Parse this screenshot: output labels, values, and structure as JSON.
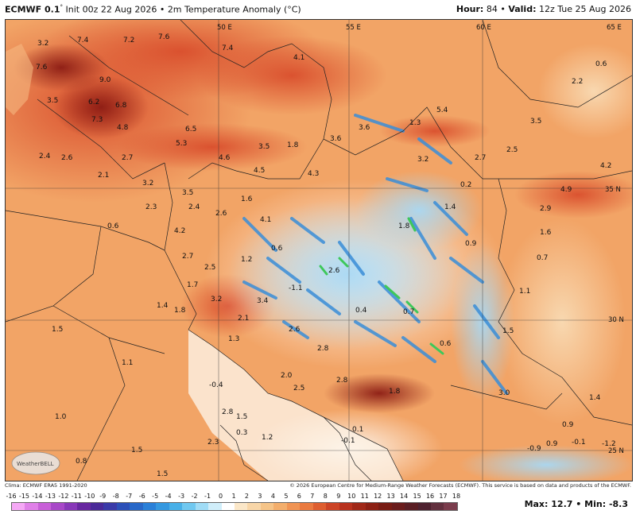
{
  "header": {
    "model": "ECMWF 0.1",
    "degree_mark": "°",
    "init": "Init 00z 22 Aug 2026",
    "sep": "•",
    "field": "2m Temperature Anomaly (°C)",
    "hour_label": "Hour:",
    "hour_value": "84",
    "valid_label": "Valid:",
    "valid_value": "12z Tue 25 Aug 2026"
  },
  "credits": {
    "left": "Clima: ECMWF ERA5 1991-2020",
    "right": "© 2026 European Centre for Medium-Range Weather Forecasts (ECMWF). This service is based on data and products of the ECMWF."
  },
  "logo": {
    "text": "WeatherBELL"
  },
  "stats": {
    "max_label": "Max:",
    "max_value": "12.7",
    "sep": "•",
    "min_label": "Min:",
    "min_value": "-8.3"
  },
  "scale": {
    "ticks": [
      "-16",
      "-15",
      "-14",
      "-13",
      "-12",
      "-11",
      "-10",
      "-9",
      "-8",
      "-7",
      "-6",
      "-5",
      "-4",
      "-3",
      "-2",
      "-1",
      "0",
      "1",
      "2",
      "3",
      "4",
      "5",
      "6",
      "7",
      "8",
      "9",
      "10",
      "11",
      "12",
      "13",
      "14",
      "15",
      "16",
      "17",
      "18"
    ],
    "colors": [
      "#f5a8f5",
      "#e080e8",
      "#c860d8",
      "#a848c8",
      "#8838b8",
      "#6828a0",
      "#4a2a98",
      "#3a3aa8",
      "#2c50b8",
      "#2868c8",
      "#2a80d8",
      "#3498e0",
      "#48b0e8",
      "#70c8f0",
      "#a0dcf6",
      "#d0eefa",
      "#ffffff",
      "#fbe7c8",
      "#f8d6a8",
      "#f5c488",
      "#f3ae6c",
      "#f09454",
      "#ea7a40",
      "#de5e30",
      "#cc4426",
      "#b8321e",
      "#a02818",
      "#8c2014",
      "#781c14",
      "#6a1c1c",
      "#5a1e24",
      "#4e2230",
      "#62303e",
      "#7a3c4c"
    ]
  },
  "map_labels": {
    "coords": [
      "50 E",
      "55 E",
      "60 E",
      "65 E",
      "35 N",
      "30 N",
      "25 N"
    ],
    "values": [
      "3.2",
      "7.4",
      "7.2",
      "7.6",
      "7.4",
      "4.1",
      "0.6",
      "7.6",
      "9.0",
      "3.5",
      "6.2",
      "6.8",
      "7.3",
      "4.8",
      "2.2",
      "3.6",
      "6.5",
      "5.3",
      "3.5",
      "1.8",
      "3.6",
      "1.3",
      "5.4",
      "3.5",
      "2.5",
      "2.4",
      "2.6",
      "2.7",
      "4.6",
      "4.5",
      "4.3",
      "3.2",
      "2.7",
      "4.2",
      "2.1",
      "3.2",
      "3.5",
      "1.6",
      "0.2",
      "4.9",
      "2.3",
      "2.4",
      "2.6",
      "4.1",
      "1.4",
      "2.9",
      "1.8",
      "1.6",
      "0.6",
      "4.2",
      "0.6",
      "0.9",
      "0.7",
      "2.7",
      "1.2",
      "2.6",
      "2.5",
      "1.7",
      "-1.1",
      "1.4",
      "1.1",
      "3.2",
      "3.4",
      "0.4",
      "0.7",
      "1.8",
      "2.1",
      "1.5",
      "1.3",
      "2.6",
      "0.6",
      "1.5",
      "2.8",
      "1.1",
      "2.0",
      "2.5",
      "2.8",
      "3.0",
      "-0.4",
      "1.8",
      "1.4",
      "2.8",
      "1.5",
      "0.1",
      "0.9",
      "1.0",
      "1.2",
      "2.3",
      "0.3",
      "1.5",
      "-0.9",
      "0.9",
      "-0.1",
      "0.8",
      "-1.2",
      "-0.1",
      "1.5"
    ]
  }
}
